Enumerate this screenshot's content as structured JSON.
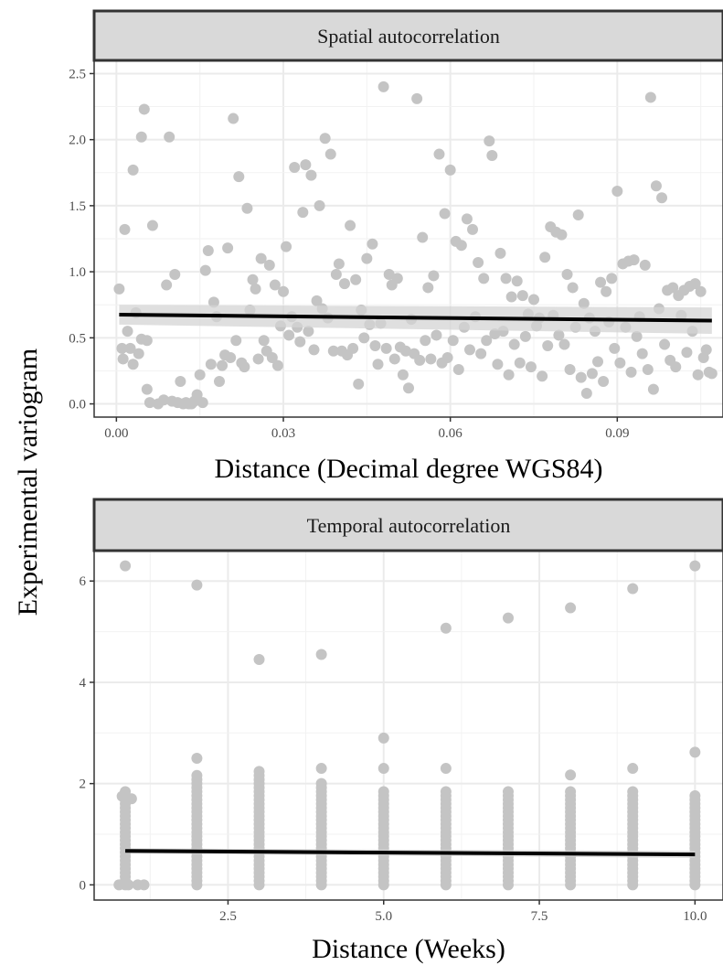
{
  "ylabel": "Experimental variogram",
  "chart_data": [
    {
      "type": "scatter",
      "title": "Spatial autocorrelation",
      "xlabel": "Distance (Decimal degree WGS84)",
      "ylabel": "Experimental variogram",
      "xlim": [
        -0.004,
        0.109
      ],
      "ylim": [
        -0.1,
        2.6
      ],
      "xticks": [
        0.0,
        0.03,
        0.06,
        0.09
      ],
      "xtick_labels": [
        "0.00",
        "0.03",
        "0.06",
        "0.09"
      ],
      "yticks": [
        0.0,
        0.5,
        1.0,
        1.5,
        2.0,
        2.5
      ],
      "ytick_labels": [
        "0.0",
        "0.5",
        "1.0",
        "1.5",
        "2.0",
        "2.5"
      ],
      "grid": true,
      "point_color": "#c4c4c4",
      "fit_color": "#000000",
      "band_color": "#d4d4d4",
      "fit": {
        "x": [
          0.0005,
          0.107
        ],
        "y": [
          0.675,
          0.63
        ]
      },
      "band": {
        "x": [
          0.0005,
          0.107
        ],
        "lower": [
          0.6,
          0.53
        ],
        "upper": [
          0.75,
          0.73
        ]
      },
      "points": [
        [
          0.0005,
          0.87
        ],
        [
          0.001,
          0.42
        ],
        [
          0.0012,
          0.34
        ],
        [
          0.0015,
          1.32
        ],
        [
          0.002,
          0.55
        ],
        [
          0.0025,
          0.42
        ],
        [
          0.003,
          1.77
        ],
        [
          0.0035,
          0.69
        ],
        [
          0.003,
          0.3
        ],
        [
          0.0045,
          2.02
        ],
        [
          0.004,
          0.38
        ],
        [
          0.0045,
          0.49
        ],
        [
          0.005,
          2.23
        ],
        [
          0.0055,
          0.48
        ],
        [
          0.0055,
          0.11
        ],
        [
          0.006,
          0.01
        ],
        [
          0.0065,
          1.35
        ],
        [
          0.0075,
          0.0
        ],
        [
          0.0085,
          0.03
        ],
        [
          0.009,
          0.9
        ],
        [
          0.0095,
          2.02
        ],
        [
          0.01,
          0.02
        ],
        [
          0.0105,
          0.98
        ],
        [
          0.011,
          0.01
        ],
        [
          0.0115,
          0.17
        ],
        [
          0.012,
          0.0
        ],
        [
          0.0125,
          0.01
        ],
        [
          0.013,
          0.0
        ],
        [
          0.0135,
          0.0
        ],
        [
          0.014,
          0.02
        ],
        [
          0.0145,
          0.07
        ],
        [
          0.015,
          0.22
        ],
        [
          0.0155,
          0.01
        ],
        [
          0.016,
          1.01
        ],
        [
          0.0165,
          1.16
        ],
        [
          0.017,
          0.3
        ],
        [
          0.0175,
          0.77
        ],
        [
          0.018,
          0.66
        ],
        [
          0.0185,
          0.17
        ],
        [
          0.019,
          0.29
        ],
        [
          0.0195,
          0.37
        ],
        [
          0.02,
          1.18
        ],
        [
          0.0205,
          0.35
        ],
        [
          0.021,
          2.16
        ],
        [
          0.0215,
          0.48
        ],
        [
          0.022,
          1.72
        ],
        [
          0.0225,
          0.31
        ],
        [
          0.023,
          0.28
        ],
        [
          0.0235,
          1.48
        ],
        [
          0.024,
          0.71
        ],
        [
          0.0245,
          0.94
        ],
        [
          0.025,
          0.87
        ],
        [
          0.0255,
          0.34
        ],
        [
          0.026,
          1.1
        ],
        [
          0.0265,
          0.48
        ],
        [
          0.027,
          0.4
        ],
        [
          0.0275,
          1.05
        ],
        [
          0.028,
          0.35
        ],
        [
          0.0285,
          0.9
        ],
        [
          0.029,
          0.29
        ],
        [
          0.0295,
          0.59
        ],
        [
          0.03,
          0.85
        ],
        [
          0.0305,
          1.19
        ],
        [
          0.031,
          0.52
        ],
        [
          0.0315,
          0.66
        ],
        [
          0.032,
          1.79
        ],
        [
          0.0325,
          0.58
        ],
        [
          0.033,
          0.47
        ],
        [
          0.0335,
          1.45
        ],
        [
          0.034,
          1.81
        ],
        [
          0.0345,
          0.55
        ],
        [
          0.035,
          1.73
        ],
        [
          0.0355,
          0.41
        ],
        [
          0.036,
          0.78
        ],
        [
          0.0365,
          1.5
        ],
        [
          0.037,
          0.72
        ],
        [
          0.0375,
          2.01
        ],
        [
          0.038,
          0.65
        ],
        [
          0.0385,
          1.89
        ],
        [
          0.039,
          0.4
        ],
        [
          0.0395,
          0.98
        ],
        [
          0.04,
          1.06
        ],
        [
          0.0405,
          0.4
        ],
        [
          0.041,
          0.91
        ],
        [
          0.0415,
          0.37
        ],
        [
          0.042,
          1.35
        ],
        [
          0.0425,
          0.42
        ],
        [
          0.043,
          0.94
        ],
        [
          0.0435,
          0.15
        ],
        [
          0.044,
          0.71
        ],
        [
          0.0445,
          0.5
        ],
        [
          0.045,
          1.1
        ],
        [
          0.0455,
          0.6
        ],
        [
          0.046,
          1.21
        ],
        [
          0.0465,
          0.44
        ],
        [
          0.047,
          0.3
        ],
        [
          0.0475,
          0.61
        ],
        [
          0.048,
          2.4
        ],
        [
          0.0485,
          0.42
        ],
        [
          0.049,
          0.98
        ],
        [
          0.0495,
          0.9
        ],
        [
          0.05,
          0.34
        ],
        [
          0.0505,
          0.95
        ],
        [
          0.051,
          0.43
        ],
        [
          0.0515,
          0.22
        ],
        [
          0.052,
          0.4
        ],
        [
          0.0525,
          0.12
        ],
        [
          0.053,
          0.64
        ],
        [
          0.0535,
          0.38
        ],
        [
          0.054,
          2.31
        ],
        [
          0.0545,
          0.33
        ],
        [
          0.055,
          1.26
        ],
        [
          0.0555,
          0.48
        ],
        [
          0.056,
          0.88
        ],
        [
          0.0565,
          0.34
        ],
        [
          0.057,
          0.97
        ],
        [
          0.0575,
          0.52
        ],
        [
          0.058,
          1.89
        ],
        [
          0.0585,
          0.31
        ],
        [
          0.059,
          1.44
        ],
        [
          0.0595,
          0.35
        ],
        [
          0.06,
          1.77
        ],
        [
          0.0605,
          0.48
        ],
        [
          0.061,
          1.23
        ],
        [
          0.0615,
          0.26
        ],
        [
          0.062,
          1.2
        ],
        [
          0.0625,
          0.58
        ],
        [
          0.063,
          1.4
        ],
        [
          0.0635,
          0.41
        ],
        [
          0.064,
          1.32
        ],
        [
          0.0645,
          0.66
        ],
        [
          0.065,
          1.07
        ],
        [
          0.0655,
          0.38
        ],
        [
          0.066,
          0.95
        ],
        [
          0.0665,
          0.48
        ],
        [
          0.067,
          1.99
        ],
        [
          0.0675,
          1.88
        ],
        [
          0.068,
          0.53
        ],
        [
          0.0685,
          0.3
        ],
        [
          0.069,
          1.14
        ],
        [
          0.0695,
          0.55
        ],
        [
          0.07,
          0.95
        ],
        [
          0.0705,
          0.22
        ],
        [
          0.071,
          0.81
        ],
        [
          0.0715,
          0.45
        ],
        [
          0.072,
          0.93
        ],
        [
          0.0725,
          0.31
        ],
        [
          0.073,
          0.82
        ],
        [
          0.0735,
          0.51
        ],
        [
          0.074,
          0.68
        ],
        [
          0.0745,
          0.28
        ],
        [
          0.075,
          0.79
        ],
        [
          0.0755,
          0.59
        ],
        [
          0.076,
          0.65
        ],
        [
          0.0765,
          0.21
        ],
        [
          0.077,
          1.11
        ],
        [
          0.0775,
          0.44
        ],
        [
          0.078,
          1.34
        ],
        [
          0.0785,
          0.67
        ],
        [
          0.079,
          1.3
        ],
        [
          0.0795,
          0.52
        ],
        [
          0.08,
          1.28
        ],
        [
          0.0805,
          0.45
        ],
        [
          0.081,
          0.98
        ],
        [
          0.0815,
          0.26
        ],
        [
          0.082,
          0.88
        ],
        [
          0.0825,
          0.58
        ],
        [
          0.083,
          1.43
        ],
        [
          0.0835,
          0.2
        ],
        [
          0.084,
          0.76
        ],
        [
          0.0845,
          0.08
        ],
        [
          0.085,
          0.65
        ],
        [
          0.0855,
          0.23
        ],
        [
          0.086,
          0.55
        ],
        [
          0.0865,
          0.32
        ],
        [
          0.087,
          0.92
        ],
        [
          0.0875,
          0.17
        ],
        [
          0.088,
          0.85
        ],
        [
          0.0885,
          0.62
        ],
        [
          0.089,
          0.95
        ],
        [
          0.0895,
          0.42
        ],
        [
          0.09,
          1.61
        ],
        [
          0.0905,
          0.31
        ],
        [
          0.091,
          1.06
        ],
        [
          0.0915,
          0.58
        ],
        [
          0.092,
          1.08
        ],
        [
          0.0925,
          0.24
        ],
        [
          0.093,
          1.09
        ],
        [
          0.0935,
          0.51
        ],
        [
          0.094,
          0.66
        ],
        [
          0.0945,
          0.38
        ],
        [
          0.095,
          1.05
        ],
        [
          0.0955,
          0.26
        ],
        [
          0.096,
          2.32
        ],
        [
          0.0965,
          0.11
        ],
        [
          0.097,
          1.65
        ],
        [
          0.0975,
          0.72
        ],
        [
          0.098,
          1.56
        ],
        [
          0.0985,
          0.45
        ],
        [
          0.099,
          0.86
        ],
        [
          0.0995,
          0.33
        ],
        [
          0.1,
          0.88
        ],
        [
          0.1005,
          0.28
        ],
        [
          0.101,
          0.82
        ],
        [
          0.1015,
          0.67
        ],
        [
          0.102,
          0.86
        ],
        [
          0.1025,
          0.39
        ],
        [
          0.103,
          0.89
        ],
        [
          0.1035,
          0.55
        ],
        [
          0.104,
          0.91
        ],
        [
          0.1045,
          0.22
        ],
        [
          0.105,
          0.85
        ],
        [
          0.1055,
          0.35
        ],
        [
          0.106,
          0.41
        ],
        [
          0.1065,
          0.24
        ],
        [
          0.107,
          0.23
        ]
      ]
    },
    {
      "type": "scatter",
      "title": "Temporal autocorrelation",
      "xlabel": "Distance (Weeks)",
      "ylabel": "Experimental variogram",
      "xlim": [
        0.35,
        10.45
      ],
      "ylim": [
        -0.3,
        6.6
      ],
      "xticks": [
        2.5,
        5.0,
        7.5,
        10.0
      ],
      "xtick_labels": [
        "2.5",
        "5.0",
        "7.5",
        "10.0"
      ],
      "yticks": [
        0,
        2,
        4,
        6
      ],
      "ytick_labels": [
        "0",
        "2",
        "4",
        "6"
      ],
      "grid": true,
      "point_color": "#c4c4c4",
      "fit_color": "#000000",
      "band_color": "#d4d4d4",
      "fit": {
        "x": [
          0.85,
          10.0
        ],
        "y": [
          0.67,
          0.6
        ]
      },
      "band": {
        "x": [
          0.85,
          10.0
        ],
        "lower": [
          0.62,
          0.53
        ],
        "upper": [
          0.72,
          0.67
        ]
      },
      "columns": [
        {
          "x": 0.85,
          "max_cont": 1.9,
          "outliers": [
            6.3
          ]
        },
        {
          "x": 2.0,
          "max_cont": 2.2,
          "outliers": [
            2.5,
            5.92
          ]
        },
        {
          "x": 3.0,
          "max_cont": 2.3,
          "outliers": [
            4.45
          ]
        },
        {
          "x": 4.0,
          "max_cont": 2.0,
          "outliers": [
            2.3,
            4.55
          ]
        },
        {
          "x": 5.0,
          "max_cont": 1.9,
          "outliers": [
            2.3,
            2.9
          ]
        },
        {
          "x": 6.0,
          "max_cont": 1.9,
          "outliers": [
            2.3,
            5.07
          ]
        },
        {
          "x": 7.0,
          "max_cont": 1.9,
          "outliers": [
            5.27
          ]
        },
        {
          "x": 8.0,
          "max_cont": 1.9,
          "outliers": [
            2.17,
            5.47
          ]
        },
        {
          "x": 9.0,
          "max_cont": 1.9,
          "outliers": [
            2.3,
            5.85
          ]
        },
        {
          "x": 10.0,
          "max_cont": 1.8,
          "outliers": [
            2.62,
            6.3
          ]
        }
      ],
      "extra_points": [
        [
          0.75,
          0.0
        ],
        [
          0.8,
          1.75
        ],
        [
          0.9,
          0.0
        ],
        [
          0.95,
          1.7
        ],
        [
          1.05,
          0.0
        ],
        [
          1.15,
          0.0
        ]
      ]
    }
  ]
}
